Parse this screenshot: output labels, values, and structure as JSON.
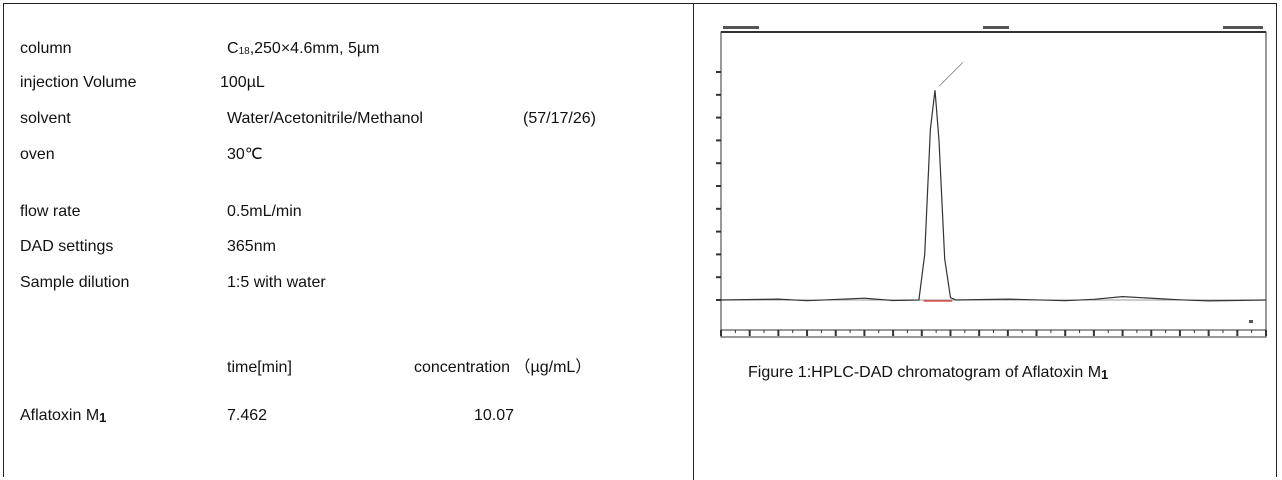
{
  "conditions": [
    {
      "label": "column",
      "value_main": "C",
      "value_sub": "18",
      "value_rest": ",250×4.6mm, 5µm"
    },
    {
      "label": "injection Volume",
      "value": "100µL"
    },
    {
      "label": "solvent",
      "value": "Water/Acetonitrile/Methanol",
      "ratio": "(57/17/26)"
    },
    {
      "label": "oven",
      "value": "30℃"
    },
    {
      "label": "flow rate",
      "value": "0.5mL/min"
    },
    {
      "label": "DAD settings",
      "value": "365nm"
    },
    {
      "label": "Sample dilution",
      "value": "1:5 with water"
    }
  ],
  "results": {
    "col_time": "time[min]",
    "col_conc": "concentration （µg/mL）",
    "rows": [
      {
        "compound": "Aflatoxin M",
        "compound_sub": "1",
        "time": "7.462",
        "concentration": "10.07"
      }
    ]
  },
  "chart_data": {
    "type": "line",
    "title": "",
    "xlabel": "",
    "ylabel": "",
    "xlim": [
      0,
      19
    ],
    "ylim": [
      0,
      100
    ],
    "grid": false,
    "legend": "none",
    "peak": {
      "x": 7.462,
      "height": 92
    },
    "x": [
      0,
      2,
      3,
      5,
      6,
      6.9,
      7.1,
      7.3,
      7.462,
      7.6,
      7.8,
      8.0,
      8.2,
      10,
      12,
      13,
      14,
      16,
      17,
      19
    ],
    "series": [
      {
        "name": "",
        "values": [
          0,
          0.4,
          -0.3,
          0.8,
          -0.2,
          0,
          20,
          75,
          92,
          70,
          18,
          1,
          0,
          0.4,
          -0.3,
          0.3,
          1.5,
          0.1,
          -0.4,
          0
        ]
      }
    ],
    "colors": {
      "line": "#333333",
      "baseline_marker": "#e03030"
    }
  },
  "caption": {
    "text": "Figure 1:HPLC-DAD chromatogram of Aflatoxin M",
    "sub": "1"
  }
}
